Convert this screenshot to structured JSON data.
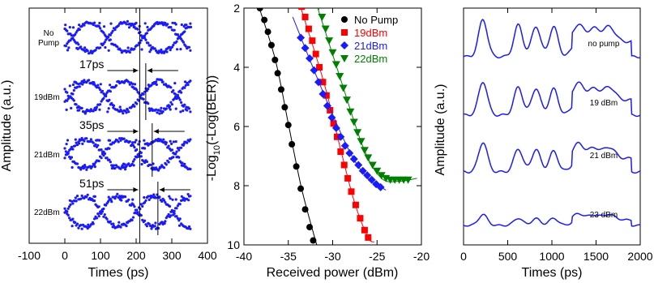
{
  "colors": {
    "eye": "#1a1aff",
    "nopump": "#000000",
    "p19": "#ff0000",
    "p21": "#1a1aff",
    "p22": "#008000",
    "trace": "#1a1aff"
  },
  "chart_data": [
    {
      "type": "scatter",
      "xlabel": "Times (ps)",
      "ylabel": "Amplitude (a.u.)",
      "xlim": [
        -100,
        400
      ],
      "xticks": [
        "-100",
        "0",
        "100",
        "200",
        "300",
        "400"
      ],
      "traces": [
        {
          "label": "No Pump",
          "period_ps": 200,
          "eye_center_ps": 170
        },
        {
          "label": "19dBm",
          "period_ps": 200,
          "eye_center_ps": 170
        },
        {
          "label": "21dBm",
          "period_ps": 200,
          "eye_center_ps": 170
        },
        {
          "label": "22dBm",
          "period_ps": 200,
          "eye_center_ps": 170
        }
      ],
      "reference_line_ps": 210,
      "annotations": [
        {
          "text": "17ps",
          "from_ps": 210,
          "to_ps": 227
        },
        {
          "text": "35ps",
          "from_ps": 210,
          "to_ps": 245
        },
        {
          "text": "51ps",
          "from_ps": 210,
          "to_ps": 261
        }
      ]
    },
    {
      "type": "scatter",
      "xlabel": "Received power (dBm)",
      "ylabel_main": "-Log",
      "ylabel_sub": "10",
      "ylabel_rest": "(-Log(BER))",
      "xlim": [
        -40,
        -20
      ],
      "ylim": [
        2,
        10
      ],
      "xticks": [
        "-40",
        "-35",
        "-30",
        "-25",
        "-20"
      ],
      "yticks": [
        "2",
        "4",
        "6",
        "8",
        "10"
      ],
      "legend_position": "top-right",
      "series": [
        {
          "name": "No Pump",
          "marker": "circle",
          "color_key": "nopump",
          "points": [
            [
              -38.2,
              2.0
            ],
            [
              -37.7,
              2.4
            ],
            [
              -37.3,
              2.8
            ],
            [
              -36.9,
              3.25
            ],
            [
              -36.5,
              3.75
            ],
            [
              -36.2,
              4.2
            ],
            [
              -35.8,
              4.75
            ],
            [
              -35.4,
              5.35
            ],
            [
              -35.0,
              5.95
            ],
            [
              -34.6,
              6.6
            ],
            [
              -34.1,
              7.35
            ],
            [
              -33.6,
              8.1
            ],
            [
              -33.1,
              8.8
            ],
            [
              -32.6,
              9.4
            ],
            [
              -32.2,
              9.85
            ]
          ],
          "fit": [
            [
              -38.6,
              1.7
            ],
            [
              -36.5,
              3.7
            ],
            [
              -35.0,
              5.9
            ],
            [
              -33.5,
              8.1
            ],
            [
              -31.8,
              10.0
            ]
          ]
        },
        {
          "name": "19dBm",
          "marker": "square",
          "color_key": "p19",
          "points": [
            [
              -33.5,
              1.95
            ],
            [
              -33.1,
              2.3
            ],
            [
              -32.7,
              2.7
            ],
            [
              -32.3,
              3.1
            ],
            [
              -31.9,
              3.55
            ],
            [
              -31.5,
              4.0
            ],
            [
              -31.1,
              4.5
            ],
            [
              -30.7,
              4.95
            ],
            [
              -30.3,
              5.45
            ],
            [
              -29.9,
              5.9
            ],
            [
              -29.5,
              6.35
            ],
            [
              -29.1,
              6.85
            ],
            [
              -28.7,
              7.3
            ],
            [
              -28.3,
              7.75
            ],
            [
              -27.9,
              8.2
            ],
            [
              -27.4,
              8.65
            ],
            [
              -26.9,
              9.1
            ],
            [
              -26.4,
              9.5
            ],
            [
              -26.0,
              9.75
            ]
          ],
          "fit": [
            [
              -34.0,
              1.6
            ],
            [
              -31.0,
              4.5
            ],
            [
              -29.0,
              6.9
            ],
            [
              -27.5,
              8.6
            ],
            [
              -26.0,
              9.75
            ],
            [
              -25.3,
              9.9
            ]
          ]
        },
        {
          "name": "21dBm",
          "marker": "diamond",
          "color_key": "p21",
          "points": [
            [
              -33.6,
              3.0
            ],
            [
              -33.1,
              3.35
            ],
            [
              -32.6,
              3.7
            ],
            [
              -32.1,
              4.1
            ],
            [
              -31.6,
              4.5
            ],
            [
              -31.1,
              4.9
            ],
            [
              -30.6,
              5.3
            ],
            [
              -30.1,
              5.7
            ],
            [
              -29.6,
              6.05
            ],
            [
              -29.1,
              6.35
            ],
            [
              -28.6,
              6.65
            ],
            [
              -28.1,
              6.9
            ],
            [
              -27.6,
              7.1
            ],
            [
              -27.1,
              7.3
            ],
            [
              -26.6,
              7.5
            ],
            [
              -26.1,
              7.65
            ],
            [
              -25.6,
              7.8
            ],
            [
              -25.1,
              7.95
            ],
            [
              -24.6,
              8.05
            ]
          ],
          "fit": [
            [
              -34.5,
              2.3
            ],
            [
              -31.0,
              4.9
            ],
            [
              -28.0,
              6.9
            ],
            [
              -26.0,
              7.75
            ],
            [
              -24.0,
              8.15
            ]
          ]
        },
        {
          "name": "22dBm",
          "marker": "triangle-down",
          "color_key": "p22",
          "points": [
            [
              -31.6,
              1.95
            ],
            [
              -31.2,
              2.3
            ],
            [
              -30.8,
              2.7
            ],
            [
              -30.4,
              3.1
            ],
            [
              -30.0,
              3.5
            ],
            [
              -29.6,
              3.9
            ],
            [
              -29.2,
              4.3
            ],
            [
              -28.8,
              4.7
            ],
            [
              -28.4,
              5.1
            ],
            [
              -28.0,
              5.5
            ],
            [
              -27.6,
              5.85
            ],
            [
              -27.2,
              6.2
            ],
            [
              -26.8,
              6.5
            ],
            [
              -26.4,
              6.8
            ],
            [
              -26.0,
              7.05
            ],
            [
              -25.5,
              7.3
            ],
            [
              -25.0,
              7.5
            ],
            [
              -24.5,
              7.65
            ],
            [
              -24.0,
              7.75
            ],
            [
              -23.5,
              7.8
            ],
            [
              -23.0,
              7.8
            ],
            [
              -22.5,
              7.8
            ],
            [
              -22.0,
              7.8
            ],
            [
              -21.5,
              7.8
            ]
          ],
          "fit": [
            [
              -32.0,
              1.7
            ],
            [
              -29.0,
              4.5
            ],
            [
              -26.5,
              6.75
            ],
            [
              -24.5,
              7.75
            ],
            [
              -22.5,
              7.85
            ],
            [
              -20.5,
              7.75
            ]
          ]
        }
      ]
    },
    {
      "type": "line",
      "xlabel": "Times (ps)",
      "ylabel": "Amplitude (a.u.)",
      "xlim": [
        0,
        2000
      ],
      "xticks": [
        "0",
        "500",
        "1000",
        "1500",
        "2000"
      ],
      "trace_labels": [
        "no pump",
        "19 dBm",
        "21 dBm",
        "23 dBm"
      ],
      "pulse_times_ps": [
        220,
        620,
        820,
        1020,
        1300,
        1480,
        1650
      ],
      "pulse_amplitudes": [
        [
          1.0,
          0.85,
          0.82,
          0.8,
          0.45,
          0.35,
          0.4
        ],
        [
          0.9,
          0.75,
          0.72,
          0.7,
          0.45,
          0.3,
          0.35
        ],
        [
          0.8,
          0.62,
          0.6,
          0.55,
          0.4,
          0.28,
          0.3
        ],
        [
          0.45,
          0.3,
          0.28,
          0.3,
          0.25,
          0.2,
          0.22
        ]
      ]
    }
  ]
}
